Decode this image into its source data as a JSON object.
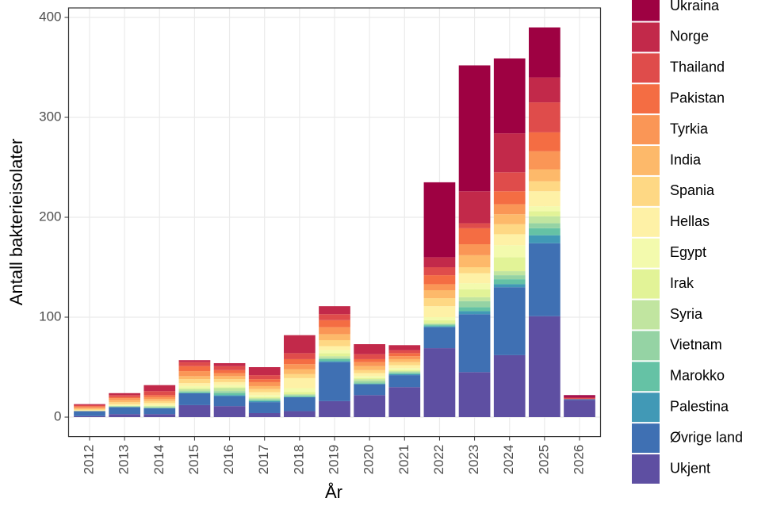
{
  "chart_data": {
    "type": "bar",
    "stacked": true,
    "x_label": "År",
    "y_label": "Antall bakterieisolater",
    "categories": [
      "2012",
      "2013",
      "2014",
      "2015",
      "2016",
      "2017",
      "2018",
      "2019",
      "2020",
      "2021",
      "2022",
      "2023",
      "2024",
      "2025",
      "2026"
    ],
    "series": [
      {
        "name": "Ukraina",
        "color": "#9E0142",
        "values": [
          0,
          0,
          0,
          0,
          0,
          0,
          0,
          0,
          0,
          0,
          75,
          126,
          75,
          50,
          2
        ]
      },
      {
        "name": "Norge",
        "color": "#C2294A",
        "values": [
          1,
          2,
          6,
          2,
          3,
          8,
          18,
          8,
          10,
          5,
          10,
          32,
          39,
          25,
          1
        ]
      },
      {
        "name": "Thailand",
        "color": "#DF4C4B",
        "values": [
          1,
          2,
          4,
          4,
          4,
          4,
          6,
          6,
          5,
          3,
          8,
          5,
          19,
          30,
          1
        ]
      },
      {
        "name": "Pakistan",
        "color": "#F46D43",
        "values": [
          1,
          1,
          2,
          5,
          3,
          3,
          5,
          7,
          3,
          3,
          9,
          16,
          13,
          19,
          0
        ]
      },
      {
        "name": "Tyrkia",
        "color": "#FA9656",
        "values": [
          1,
          2,
          2,
          5,
          3,
          4,
          5,
          7,
          4,
          3,
          6,
          11,
          10,
          18,
          0
        ]
      },
      {
        "name": "India",
        "color": "#FDB96A",
        "values": [
          1,
          2,
          2,
          3,
          3,
          3,
          5,
          6,
          4,
          3,
          8,
          12,
          10,
          12,
          0
        ]
      },
      {
        "name": "Spania",
        "color": "#FED884",
        "values": [
          1,
          2,
          2,
          4,
          3,
          3,
          4,
          6,
          3,
          3,
          8,
          6,
          10,
          10,
          0
        ]
      },
      {
        "name": "Hellas",
        "color": "#FEF1A6",
        "values": [
          1,
          1,
          2,
          3,
          3,
          3,
          10,
          4,
          3,
          3,
          11,
          10,
          11,
          15,
          0
        ]
      },
      {
        "name": "Egypt",
        "color": "#F3FAAD",
        "values": [
          0,
          1,
          1,
          2,
          2,
          2,
          4,
          3,
          2,
          2,
          3,
          6,
          12,
          5,
          0
        ]
      },
      {
        "name": "Irak",
        "color": "#E2F397",
        "values": [
          0,
          0,
          0,
          1,
          1,
          1,
          2,
          3,
          1,
          1,
          3,
          8,
          14,
          5,
          0
        ]
      },
      {
        "name": "Syria",
        "color": "#C1E5A0",
        "values": [
          0,
          0,
          1,
          2,
          3,
          1,
          1,
          2,
          2,
          1,
          1,
          4,
          4,
          7,
          0
        ]
      },
      {
        "name": "Vietnam",
        "color": "#95D3A4",
        "values": [
          0,
          1,
          1,
          1,
          2,
          1,
          1,
          1,
          2,
          1,
          1,
          6,
          4,
          5,
          0
        ]
      },
      {
        "name": "Marokko",
        "color": "#65C2A5",
        "values": [
          0,
          0,
          0,
          1,
          2,
          1,
          1,
          2,
          1,
          1,
          1,
          4,
          5,
          7,
          0
        ]
      },
      {
        "name": "Palestina",
        "color": "#4199B6",
        "values": [
          0,
          0,
          0,
          0,
          1,
          1,
          0,
          1,
          0,
          1,
          1,
          3,
          3,
          8,
          0
        ]
      },
      {
        "name": "Øvrige land",
        "color": "#3F70B3",
        "values": [
          5,
          7,
          6,
          12,
          10,
          11,
          14,
          39,
          11,
          12,
          21,
          58,
          68,
          73,
          1
        ]
      },
      {
        "name": "Ukjent",
        "color": "#5E4FA2",
        "values": [
          1,
          3,
          3,
          12,
          11,
          4,
          6,
          16,
          22,
          30,
          69,
          45,
          62,
          101,
          17
        ]
      }
    ],
    "ylim": [
      -19.5,
      409.5
    ],
    "yticks": [
      0,
      100,
      200,
      300,
      400
    ],
    "grid": true,
    "legend": "right"
  }
}
